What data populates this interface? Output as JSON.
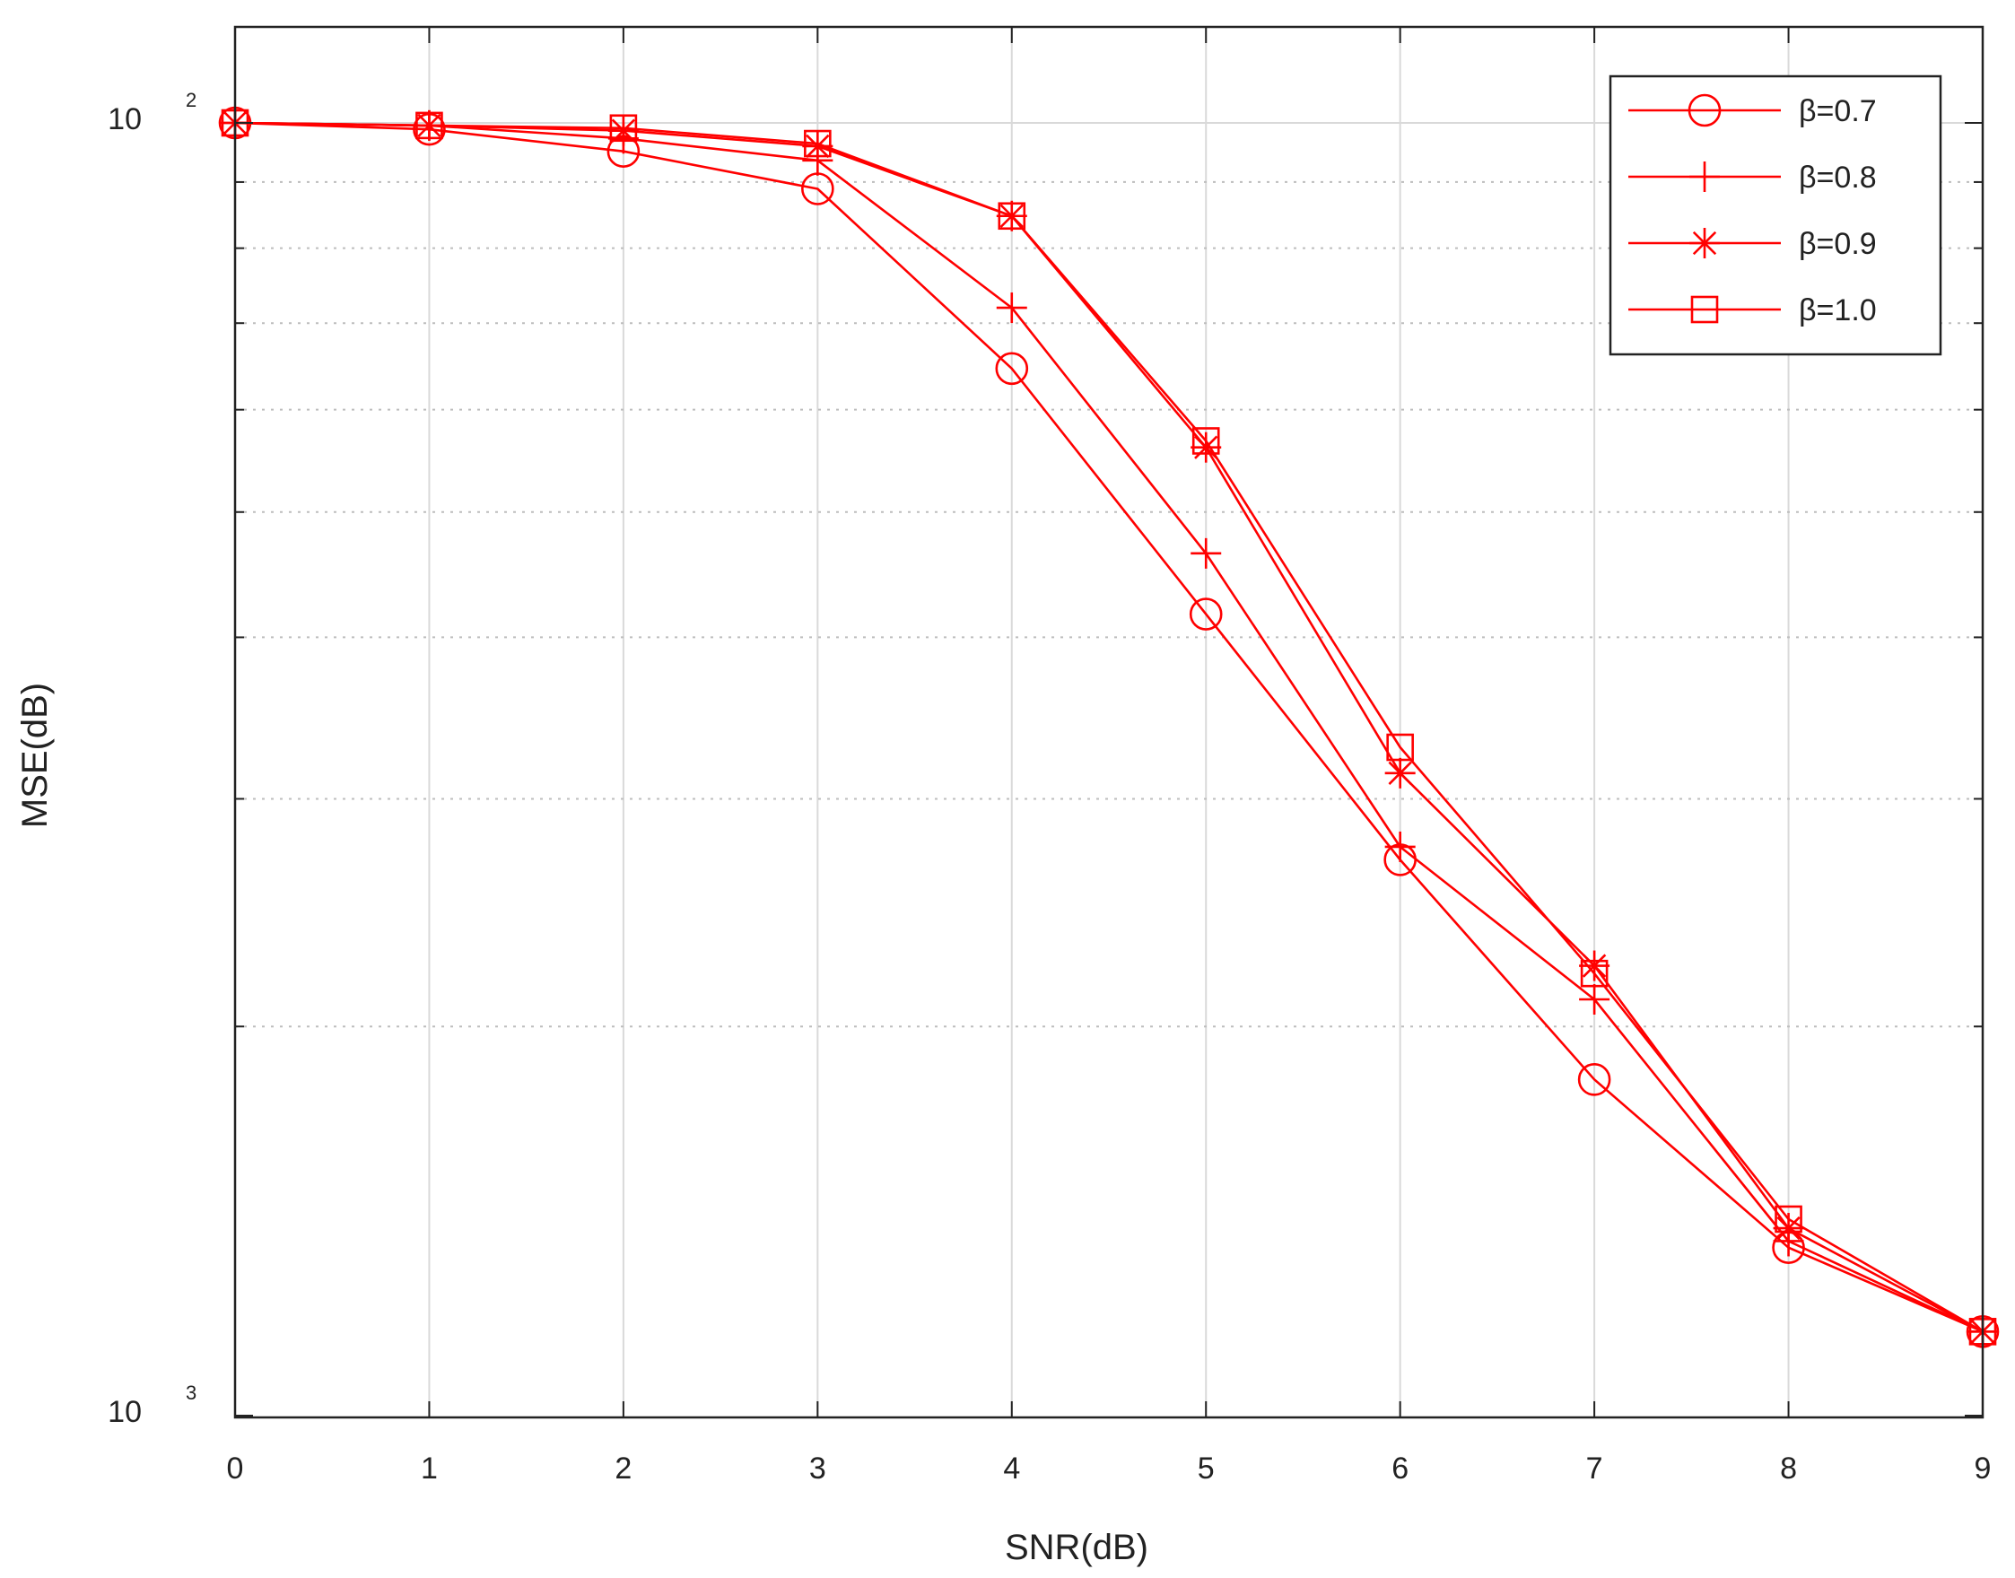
{
  "chart_data": {
    "type": "line",
    "title": "",
    "xlabel": "SNR(dB)",
    "ylabel": "MSE(dB)",
    "x": [
      0,
      1,
      2,
      3,
      4,
      5,
      6,
      7,
      8,
      9
    ],
    "xlim": [
      0,
      9
    ],
    "y_scale": "log",
    "y_tick_labels": [
      {
        "base": "10",
        "exp": "2"
      },
      {
        "base": "10",
        "exp": "3"
      }
    ],
    "grid": true,
    "legend_position": "top-right",
    "series_color": "#ff0000",
    "series": [
      {
        "name": "β=0.7",
        "marker": "circle",
        "values": [
          0.0,
          0.05,
          0.22,
          0.51,
          1.9,
          3.8,
          5.7,
          7.4,
          8.7,
          9.35
        ]
      },
      {
        "name": "β=0.8",
        "marker": "plus",
        "values": [
          0.0,
          0.02,
          0.12,
          0.29,
          1.43,
          3.33,
          5.6,
          6.78,
          8.65,
          9.35
        ]
      },
      {
        "name": "β=0.9",
        "marker": "asterisk",
        "values": [
          0.0,
          0.02,
          0.06,
          0.18,
          0.72,
          2.51,
          5.03,
          6.52,
          8.55,
          9.35
        ]
      },
      {
        "name": "β=1.0",
        "marker": "square",
        "values": [
          0.0,
          0.02,
          0.04,
          0.16,
          0.72,
          2.46,
          4.83,
          6.58,
          8.48,
          9.35
        ]
      }
    ]
  }
}
